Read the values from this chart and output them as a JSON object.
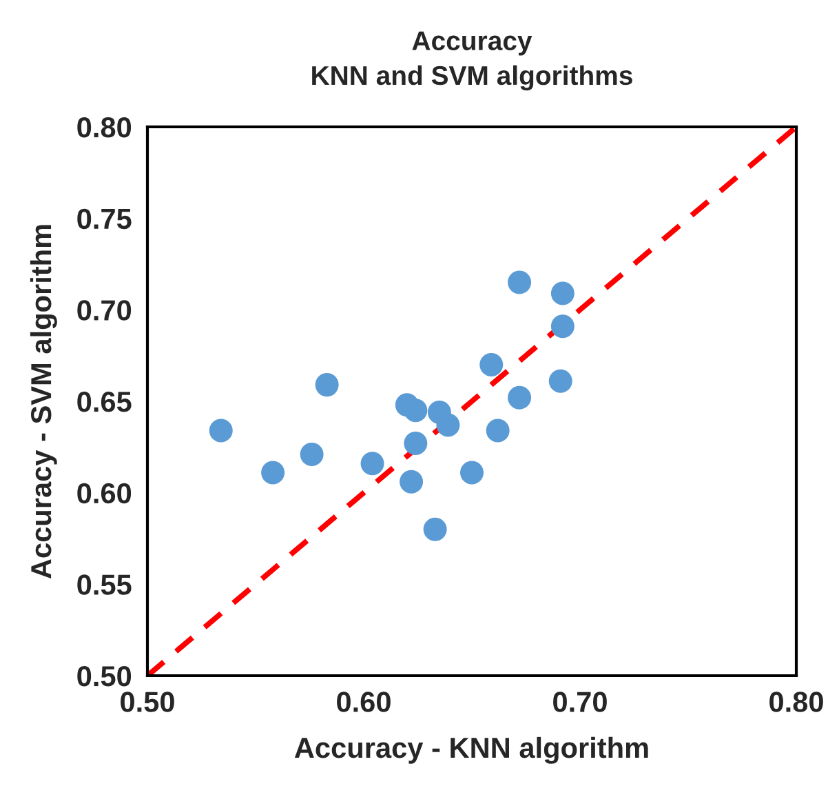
{
  "chart_data": {
    "type": "scatter",
    "title": "Accuracy\nKNN and SVM algorithms",
    "xlabel": "Accuracy - KNN algorithm",
    "ylabel": "Accuracy - SVM algorithm",
    "xlim": [
      0.5,
      0.8
    ],
    "ylim": [
      0.5,
      0.8
    ],
    "xticks": [
      {
        "value": 0.5,
        "label": "0.50"
      },
      {
        "value": 0.6,
        "label": "0.60"
      },
      {
        "value": 0.7,
        "label": "0.70"
      },
      {
        "value": 0.8,
        "label": "0.80"
      }
    ],
    "yticks": [
      {
        "value": 0.5,
        "label": "0.50"
      },
      {
        "value": 0.55,
        "label": "0.55"
      },
      {
        "value": 0.6,
        "label": "0.60"
      },
      {
        "value": 0.65,
        "label": "0.65"
      },
      {
        "value": 0.7,
        "label": "0.70"
      },
      {
        "value": 0.75,
        "label": "0.75"
      },
      {
        "value": 0.8,
        "label": "0.80"
      }
    ],
    "grid": false,
    "series": [
      {
        "color": "#5b9bd5",
        "marker": "circle",
        "x": [
          0.534,
          0.558,
          0.576,
          0.583,
          0.604,
          0.62,
          0.624,
          0.624,
          0.622,
          0.635,
          0.639,
          0.633,
          0.65,
          0.672,
          0.692,
          0.692,
          0.659,
          0.691,
          0.672,
          0.662
        ],
        "values": [
          0.634,
          0.611,
          0.621,
          0.659,
          0.616,
          0.648,
          0.645,
          0.627,
          0.606,
          0.644,
          0.637,
          0.58,
          0.611,
          0.715,
          0.709,
          0.691,
          0.67,
          0.661,
          0.652,
          0.634
        ]
      },
      {
        "type": "line",
        "color": "#ff0000",
        "line_style": "dashed",
        "x": [
          0.5,
          0.8
        ],
        "values": [
          0.5,
          0.8
        ]
      }
    ]
  }
}
